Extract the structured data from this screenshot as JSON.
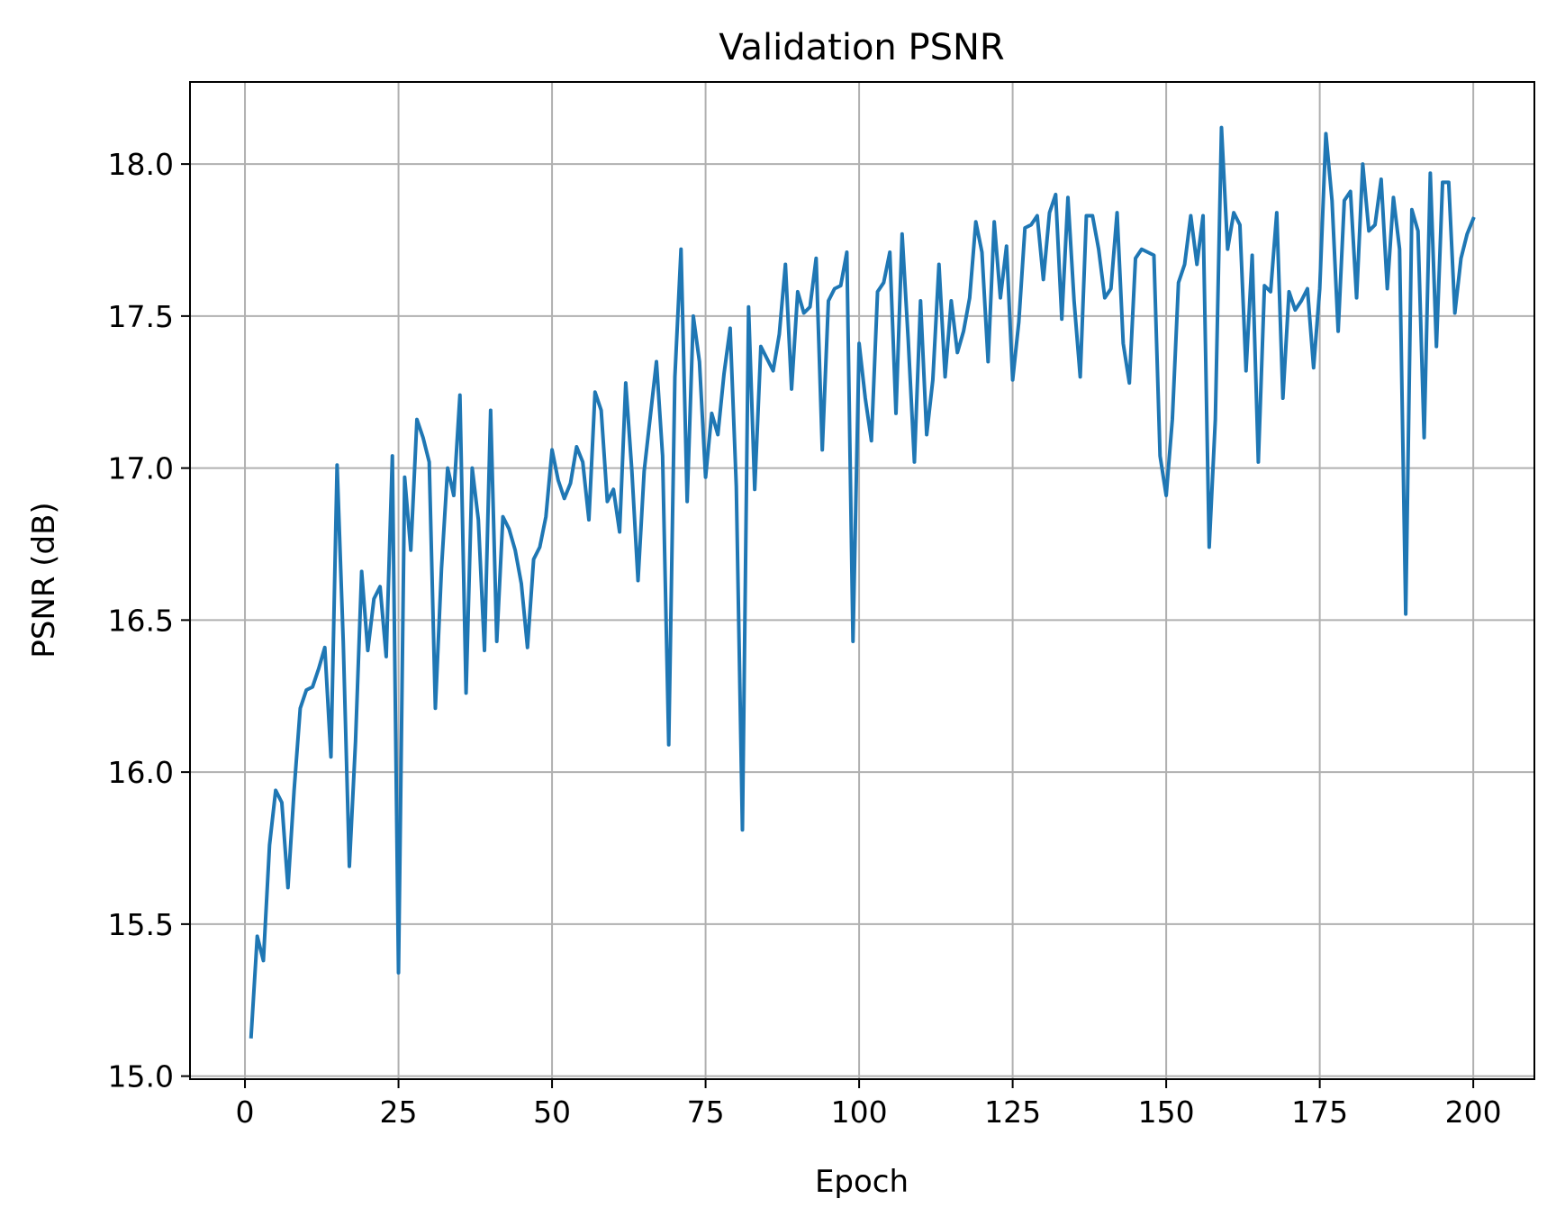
{
  "chart_data": {
    "type": "line",
    "title": "Validation PSNR",
    "xlabel": "Epoch",
    "ylabel": "PSNR (dB)",
    "xlim": [
      -8.95,
      209.95
    ],
    "ylim": [
      14.99,
      18.27
    ],
    "xticks": [
      0,
      25,
      50,
      75,
      100,
      125,
      150,
      175,
      200
    ],
    "yticks": [
      15.0,
      15.5,
      16.0,
      16.5,
      17.0,
      17.5,
      18.0
    ],
    "ytick_labels": [
      "15.0",
      "15.5",
      "16.0",
      "16.5",
      "17.0",
      "17.5",
      "18.0"
    ],
    "grid": true,
    "line_color": "#1f77b4",
    "series": [
      {
        "name": "",
        "x": [
          1,
          2,
          3,
          4,
          5,
          6,
          7,
          8,
          9,
          10,
          11,
          12,
          13,
          14,
          15,
          16,
          17,
          18,
          19,
          20,
          21,
          22,
          23,
          24,
          25,
          26,
          27,
          28,
          29,
          30,
          31,
          32,
          33,
          34,
          35,
          36,
          37,
          38,
          39,
          40,
          41,
          42,
          43,
          44,
          45,
          46,
          47,
          48,
          49,
          50,
          51,
          52,
          53,
          54,
          55,
          56,
          57,
          58,
          59,
          60,
          61,
          62,
          63,
          64,
          65,
          66,
          67,
          68,
          69,
          70,
          71,
          72,
          73,
          74,
          75,
          76,
          77,
          78,
          79,
          80,
          81,
          82,
          83,
          84,
          85,
          86,
          87,
          88,
          89,
          90,
          91,
          92,
          93,
          94,
          95,
          96,
          97,
          98,
          99,
          100,
          101,
          102,
          103,
          104,
          105,
          106,
          107,
          108,
          109,
          110,
          111,
          112,
          113,
          114,
          115,
          116,
          117,
          118,
          119,
          120,
          121,
          122,
          123,
          124,
          125,
          126,
          127,
          128,
          129,
          130,
          131,
          132,
          133,
          134,
          135,
          136,
          137,
          138,
          139,
          140,
          141,
          142,
          143,
          144,
          145,
          146,
          147,
          148,
          149,
          150,
          151,
          152,
          153,
          154,
          155,
          156,
          157,
          158,
          159,
          160,
          161,
          162,
          163,
          164,
          165,
          166,
          167,
          168,
          169,
          170,
          171,
          172,
          173,
          174,
          175,
          176,
          177,
          178,
          179,
          180,
          181,
          182,
          183,
          184,
          185,
          186,
          187,
          188,
          189,
          190,
          191,
          192,
          193,
          194,
          195,
          196,
          197,
          198,
          199,
          200
        ],
        "y": [
          15.13,
          15.46,
          15.38,
          15.76,
          15.94,
          15.9,
          15.62,
          15.94,
          16.21,
          16.27,
          16.28,
          16.34,
          16.41,
          16.05,
          17.01,
          16.43,
          15.69,
          16.1,
          16.66,
          16.4,
          16.57,
          16.61,
          16.38,
          17.04,
          15.34,
          16.97,
          16.73,
          17.16,
          17.1,
          17.02,
          16.21,
          16.67,
          17.0,
          16.91,
          17.24,
          16.26,
          17.0,
          16.83,
          16.4,
          17.19,
          16.43,
          16.84,
          16.8,
          16.73,
          16.62,
          16.41,
          16.7,
          16.74,
          16.84,
          17.06,
          16.96,
          16.9,
          16.95,
          17.07,
          17.02,
          16.83,
          17.25,
          17.19,
          16.89,
          16.93,
          16.79,
          17.28,
          16.99,
          16.63,
          16.99,
          17.17,
          17.35,
          17.04,
          16.09,
          17.3,
          17.72,
          16.89,
          17.5,
          17.35,
          16.97,
          17.18,
          17.11,
          17.31,
          17.46,
          16.94,
          15.81,
          17.53,
          16.93,
          17.4,
          17.36,
          17.32,
          17.44,
          17.67,
          17.26,
          17.58,
          17.51,
          17.53,
          17.69,
          17.06,
          17.55,
          17.59,
          17.6,
          17.71,
          16.43,
          17.41,
          17.23,
          17.09,
          17.58,
          17.61,
          17.71,
          17.18,
          17.77,
          17.42,
          17.02,
          17.55,
          17.11,
          17.29,
          17.67,
          17.3,
          17.55,
          17.38,
          17.45,
          17.56,
          17.81,
          17.71,
          17.35,
          17.81,
          17.56,
          17.73,
          17.29,
          17.48,
          17.79,
          17.8,
          17.83,
          17.62,
          17.84,
          17.9,
          17.49,
          17.89,
          17.55,
          17.3,
          17.83,
          17.83,
          17.72,
          17.56,
          17.59,
          17.84,
          17.41,
          17.28,
          17.69,
          17.72,
          17.71,
          17.7,
          17.04,
          16.91,
          17.16,
          17.61,
          17.67,
          17.83,
          17.67,
          17.83,
          16.74,
          17.16,
          18.12,
          17.72,
          17.84,
          17.8,
          17.32,
          17.7,
          17.02,
          17.6,
          17.58,
          17.84,
          17.23,
          17.58,
          17.52,
          17.55,
          17.59,
          17.33,
          17.59,
          18.1,
          17.88,
          17.45,
          17.88,
          17.91,
          17.56,
          18.0,
          17.78,
          17.8,
          17.95,
          17.59,
          17.89,
          17.72,
          16.52,
          17.85,
          17.78,
          17.1,
          17.97,
          17.4,
          17.94,
          17.94,
          17.51,
          17.69,
          17.77,
          17.82
        ]
      }
    ]
  }
}
